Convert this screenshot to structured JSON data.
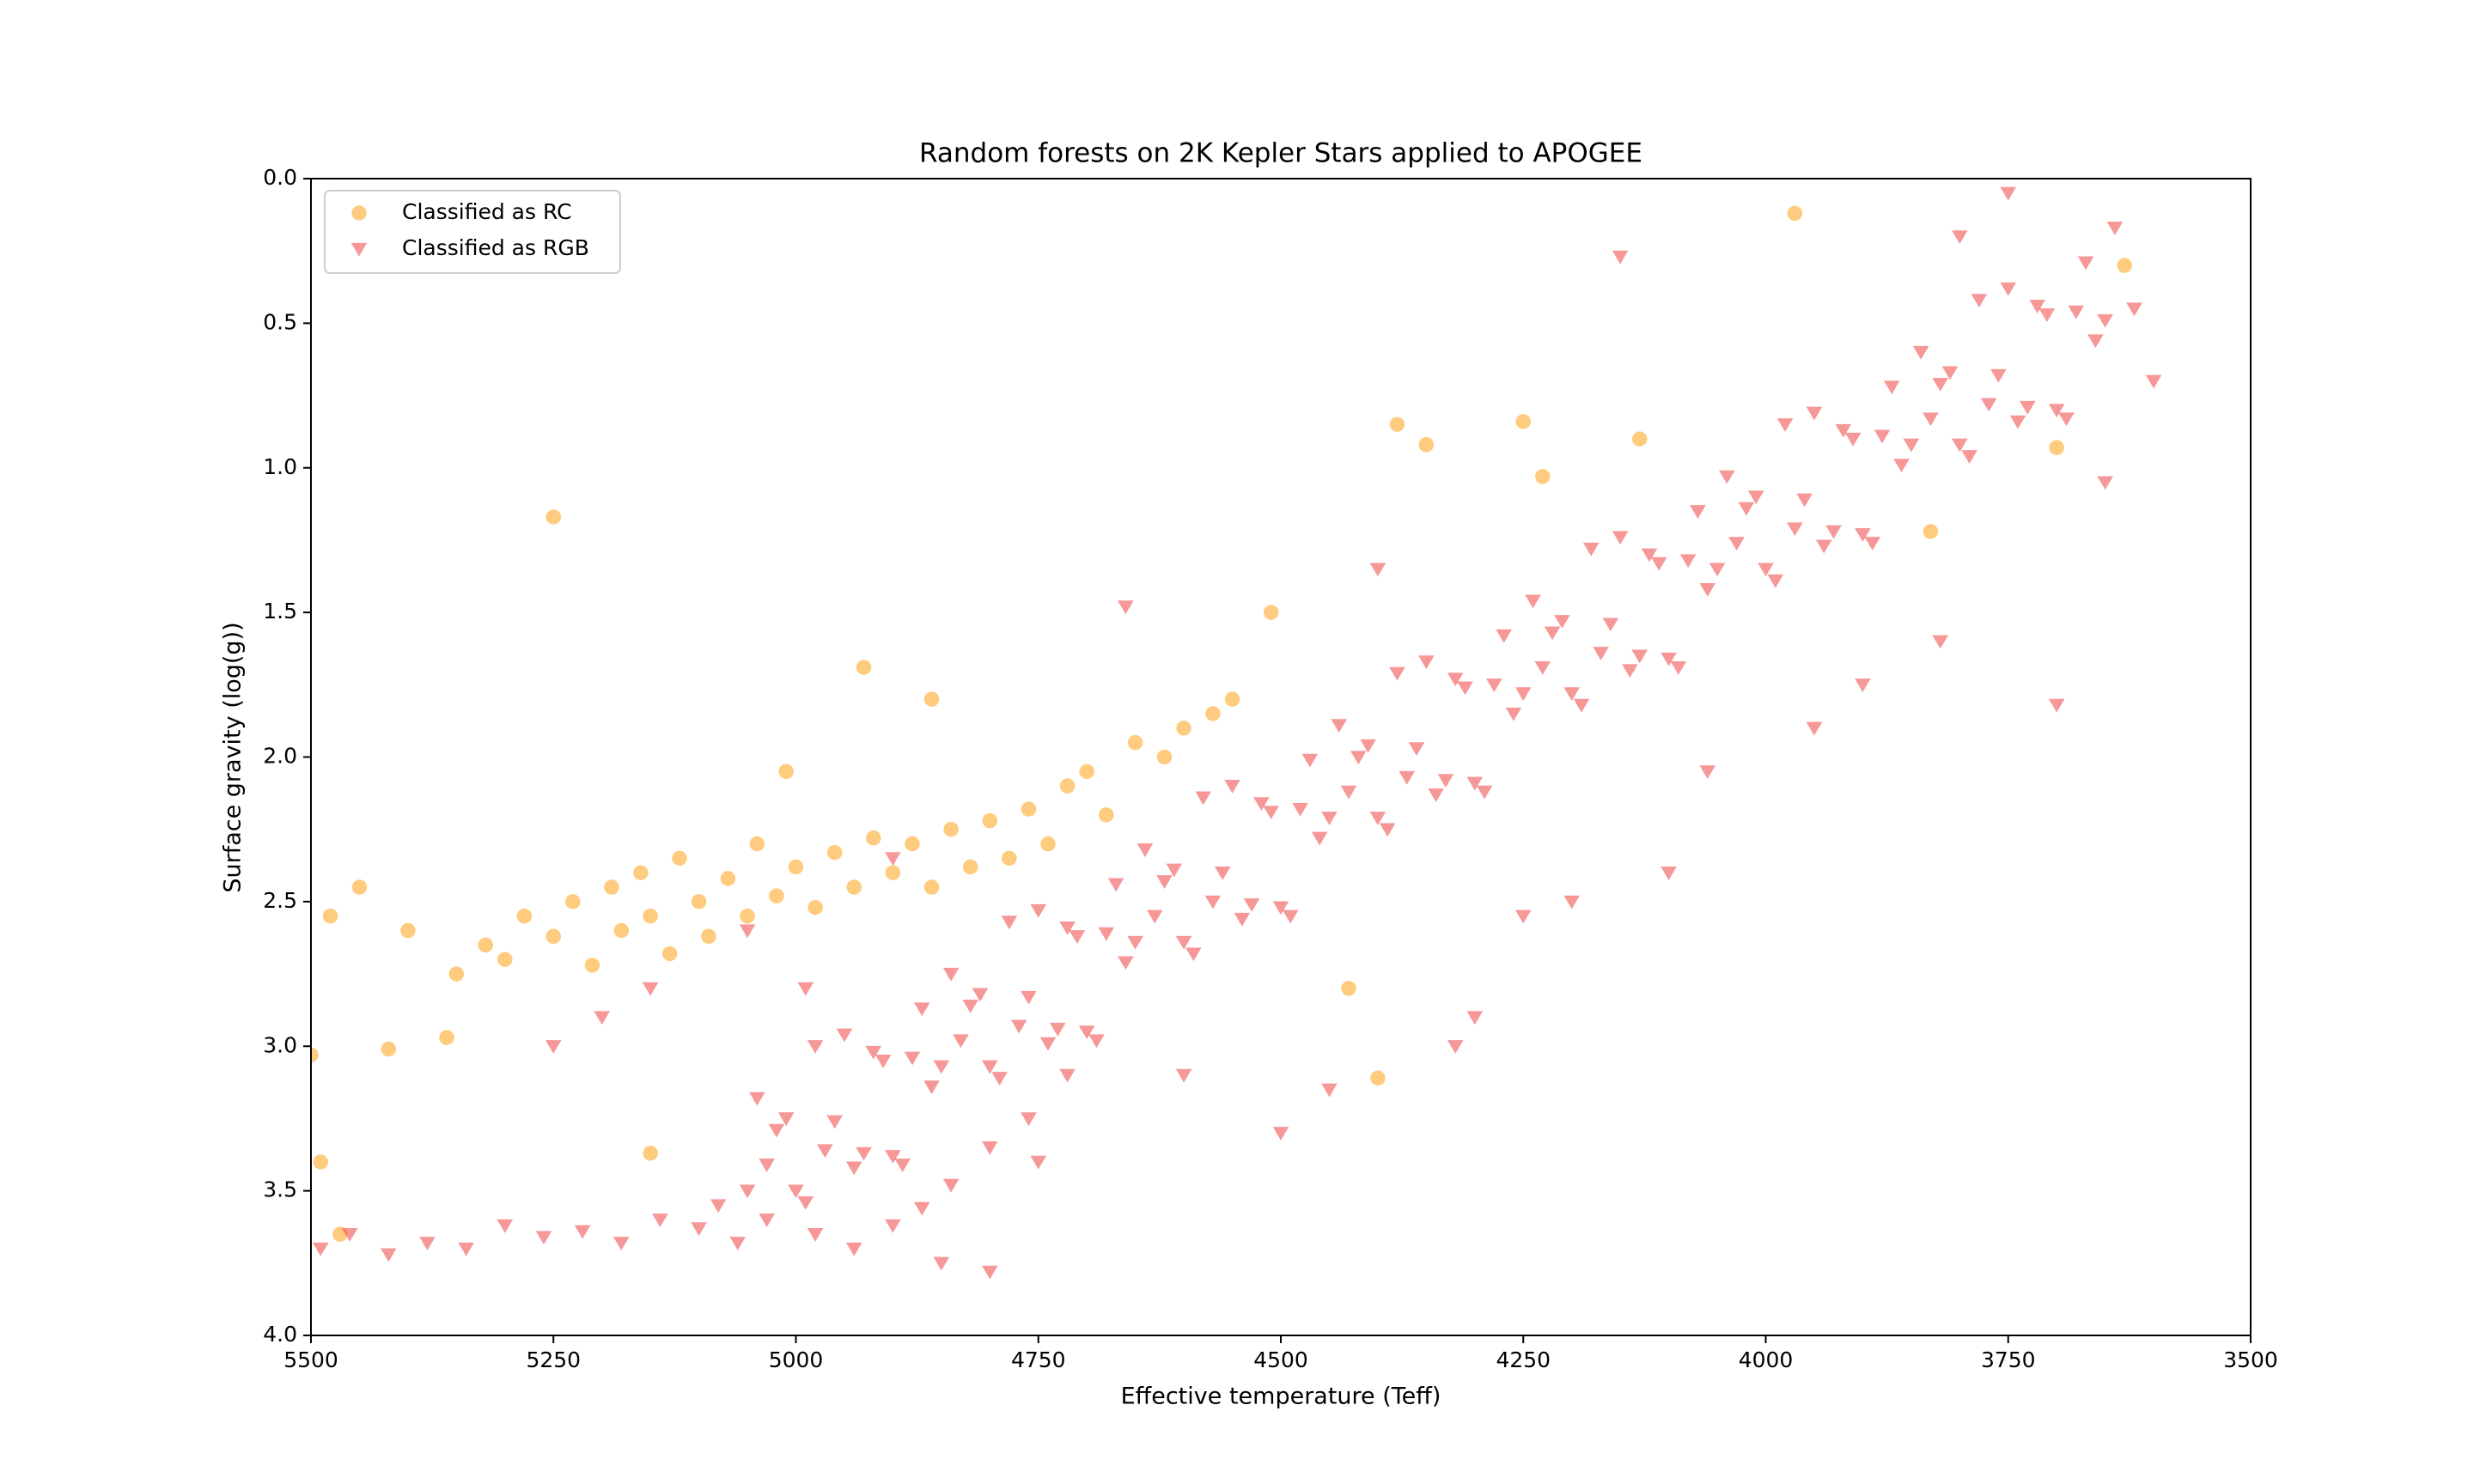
{
  "chart_data": {
    "type": "scatter",
    "title": "Random forests on 2K Kepler Stars applied to APOGEE",
    "x_label": "Effective temperature (Teff)",
    "y_label": "Surface gravity (log(g))",
    "xlim": [
      5500,
      3500
    ],
    "ylim": [
      4.0,
      0.0
    ],
    "xticks": [
      5500,
      5250,
      5000,
      4750,
      4500,
      4250,
      4000,
      3750,
      3500
    ],
    "yticks": [
      {
        "value": 0.0,
        "label": "0.0"
      },
      0.5,
      {
        "value": 1.0,
        "label": "1.0"
      },
      1.5,
      {
        "value": 2.0,
        "label": "2.0"
      },
      2.5,
      {
        "value": 3.0,
        "label": "3.0"
      },
      3.5,
      {
        "value": 4.0,
        "label": "4.0"
      }
    ],
    "legend": "upper left",
    "series": [
      {
        "name": "Classified as RC",
        "color": "#ff9900",
        "marker": "circle",
        "x": [
          5480,
          5450,
          5400,
          5350,
          5320,
          5300,
          5280,
          5250,
          5230,
          5210,
          5190,
          5180,
          5160,
          5150,
          5130,
          5120,
          5100,
          5090,
          5070,
          5050,
          5040,
          5020,
          5000,
          4980,
          4960,
          4940,
          4920,
          4900,
          4880,
          4860,
          4840,
          4820,
          4800,
          4780,
          4760,
          4740,
          4720,
          4700,
          4680,
          4650,
          4620,
          4600,
          4570,
          4550,
          5250,
          4380,
          4350,
          4250,
          3970,
          3830,
          3700,
          3630,
          5500,
          5490,
          5470,
          5150,
          4430,
          4400,
          4930,
          4860,
          5010,
          5360,
          5420,
          4510,
          4230,
          4130
        ],
        "values": [
          2.55,
          2.45,
          2.6,
          2.75,
          2.65,
          2.7,
          2.55,
          2.62,
          2.5,
          2.72,
          2.45,
          2.6,
          2.4,
          2.55,
          2.68,
          2.35,
          2.5,
          2.62,
          2.42,
          2.55,
          2.3,
          2.48,
          2.38,
          2.52,
          2.33,
          2.45,
          2.28,
          2.4,
          2.3,
          2.45,
          2.25,
          2.38,
          2.22,
          2.35,
          2.18,
          2.3,
          2.1,
          2.05,
          2.2,
          1.95,
          2.0,
          1.9,
          1.85,
          1.8,
          1.17,
          0.85,
          0.92,
          0.84,
          0.12,
          1.22,
          0.93,
          0.3,
          3.03,
          3.4,
          3.65,
          3.37,
          2.8,
          3.11,
          1.69,
          1.8,
          2.05,
          2.97,
          3.01,
          1.5,
          1.03,
          0.9
        ]
      },
      {
        "name": "Classified as RGB",
        "color": "#ee3333",
        "marker": "triangle-down",
        "x": [
          3640,
          3660,
          3680,
          3700,
          3720,
          3740,
          3760,
          3780,
          3800,
          3820,
          3840,
          3860,
          3880,
          3900,
          3920,
          3940,
          3960,
          3980,
          4000,
          4020,
          4040,
          4060,
          4080,
          4100,
          4120,
          4140,
          4160,
          4180,
          4200,
          4220,
          4240,
          4260,
          4280,
          4300,
          4320,
          4340,
          4360,
          4380,
          4400,
          4420,
          4440,
          4460,
          4480,
          4500,
          4520,
          4540,
          4560,
          4580,
          4600,
          4620,
          4640,
          4660,
          4680,
          4700,
          4720,
          4740,
          4760,
          4780,
          4800,
          4820,
          4840,
          4860,
          4880,
          4900,
          4920,
          4940,
          4960,
          4980,
          5000,
          5020,
          5040,
          3650,
          3670,
          3690,
          3710,
          3730,
          3750,
          3770,
          3790,
          3810,
          3830,
          3850,
          3870,
          3890,
          3910,
          3930,
          3950,
          3970,
          3990,
          4010,
          4030,
          4050,
          4070,
          4090,
          4110,
          4130,
          4150,
          4170,
          4190,
          4210,
          4230,
          4250,
          4270,
          4290,
          4310,
          4330,
          4350,
          4370,
          4390,
          4410,
          4430,
          4450,
          4470,
          4490,
          4510,
          4530,
          4550,
          4570,
          4590,
          4610,
          4630,
          4650,
          4670,
          4690,
          4710,
          4730,
          4750,
          4770,
          4790,
          4810,
          4830,
          4850,
          4870,
          4890,
          4910,
          4930,
          4950,
          4970,
          4990,
          5010,
          5030,
          5050,
          5490,
          5460,
          5420,
          5380,
          5340,
          5300,
          5260,
          5220,
          5180,
          5140,
          5100,
          5080,
          5060,
          5030,
          4980,
          4940,
          4900,
          4870,
          4840,
          4800,
          4760,
          4720,
          4850,
          4800,
          4750,
          4600,
          4500,
          4450,
          4300,
          4320,
          4250,
          4200,
          4100,
          4060,
          3950,
          3900,
          3820,
          3700,
          3650,
          3600,
          3620,
          3750,
          3800,
          4150,
          4400,
          4660,
          4900,
          5050,
          5150,
          5200,
          5250,
          4990
        ],
        "values": [
          0.17,
          0.56,
          0.46,
          0.8,
          0.44,
          0.84,
          0.68,
          0.42,
          0.92,
          0.71,
          0.6,
          0.99,
          0.89,
          1.23,
          0.87,
          1.27,
          1.11,
          0.85,
          1.35,
          1.14,
          1.03,
          1.42,
          1.32,
          1.66,
          1.3,
          1.7,
          1.54,
          1.28,
          1.78,
          1.57,
          1.46,
          1.85,
          1.75,
          2.09,
          1.73,
          2.13,
          1.97,
          1.71,
          2.21,
          2.0,
          1.89,
          2.28,
          2.18,
          2.52,
          2.16,
          2.56,
          2.4,
          2.14,
          2.64,
          2.43,
          2.32,
          2.71,
          2.61,
          2.95,
          2.59,
          2.99,
          2.83,
          2.57,
          3.07,
          2.86,
          2.75,
          3.14,
          3.04,
          3.38,
          3.02,
          3.42,
          3.26,
          3.0,
          3.5,
          3.29,
          3.18,
          0.49,
          0.29,
          0.83,
          0.47,
          0.79,
          0.38,
          0.78,
          0.96,
          0.67,
          0.83,
          0.92,
          0.72,
          1.26,
          0.9,
          1.22,
          0.81,
          1.21,
          1.39,
          1.1,
          1.26,
          1.35,
          1.15,
          1.69,
          1.33,
          1.65,
          1.24,
          1.64,
          1.82,
          1.53,
          1.69,
          1.78,
          1.58,
          2.12,
          1.76,
          2.08,
          1.67,
          2.07,
          2.25,
          1.96,
          2.12,
          2.21,
          2.01,
          2.55,
          2.19,
          2.51,
          2.1,
          2.5,
          2.68,
          2.39,
          2.55,
          2.64,
          2.44,
          2.98,
          2.62,
          2.94,
          2.53,
          2.93,
          3.11,
          2.82,
          2.98,
          3.07,
          2.87,
          3.41,
          3.05,
          3.37,
          2.96,
          3.36,
          3.54,
          3.25,
          3.41,
          3.5,
          3.7,
          3.65,
          3.72,
          3.68,
          3.7,
          3.62,
          3.66,
          3.64,
          3.68,
          3.6,
          3.63,
          3.55,
          3.68,
          3.6,
          3.65,
          3.7,
          3.62,
          3.56,
          3.48,
          3.35,
          3.25,
          3.1,
          3.75,
          3.78,
          3.4,
          3.1,
          3.3,
          3.15,
          2.9,
          3.0,
          2.55,
          2.5,
          2.4,
          2.05,
          1.9,
          1.75,
          1.6,
          1.82,
          1.05,
          0.7,
          0.45,
          0.05,
          0.2,
          0.27,
          1.35,
          1.48,
          2.35,
          2.6,
          2.8,
          2.9,
          3.0,
          2.8
        ]
      }
    ]
  }
}
